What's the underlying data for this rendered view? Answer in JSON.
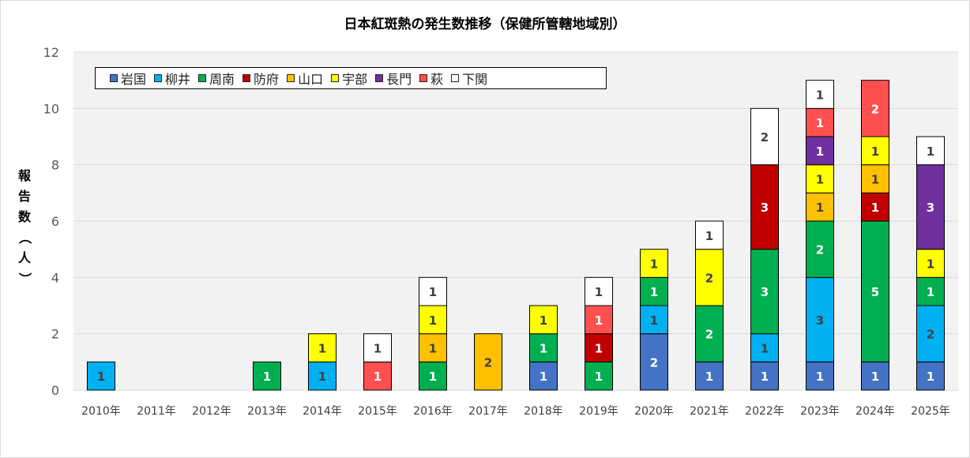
{
  "chart_data": {
    "type": "bar",
    "stacked": true,
    "title": "日本紅斑熱の発生数推移（保健所管轄地域別）",
    "ylabel": "報告数（人）",
    "xlabel": "",
    "ylim": [
      0,
      12
    ],
    "yticks": [
      0,
      2,
      4,
      6,
      8,
      10,
      12
    ],
    "grid": true,
    "legend_position": "top-left",
    "categories": [
      "2010年",
      "2011年",
      "2012年",
      "2013年",
      "2014年",
      "2015年",
      "2016年",
      "2017年",
      "2018年",
      "2019年",
      "2020年",
      "2021年",
      "2022年",
      "2023年",
      "2024年",
      "2025年"
    ],
    "series": [
      {
        "name": "岩国",
        "color": "#4472C4",
        "values": [
          0,
          0,
          0,
          0,
          0,
          0,
          0,
          0,
          1,
          0,
          2,
          1,
          1,
          1,
          1,
          1
        ]
      },
      {
        "name": "柳井",
        "color": "#00B0F0",
        "values": [
          1,
          0,
          0,
          0,
          1,
          0,
          0,
          0,
          0,
          0,
          1,
          0,
          1,
          3,
          0,
          2
        ]
      },
      {
        "name": "周南",
        "color": "#00B050",
        "values": [
          0,
          0,
          0,
          1,
          0,
          0,
          1,
          0,
          1,
          1,
          1,
          2,
          3,
          2,
          5,
          1
        ]
      },
      {
        "name": "防府",
        "color": "#C00000",
        "values": [
          0,
          0,
          0,
          0,
          0,
          0,
          0,
          0,
          0,
          1,
          0,
          0,
          3,
          0,
          1,
          0
        ]
      },
      {
        "name": "山口",
        "color": "#FFC000",
        "values": [
          0,
          0,
          0,
          0,
          0,
          0,
          1,
          2,
          0,
          0,
          0,
          0,
          0,
          1,
          1,
          0
        ]
      },
      {
        "name": "宇部",
        "color": "#FFFF00",
        "values": [
          0,
          0,
          0,
          0,
          1,
          0,
          1,
          0,
          1,
          0,
          1,
          2,
          0,
          1,
          1,
          1
        ]
      },
      {
        "name": "長門",
        "color": "#7030A0",
        "values": [
          0,
          0,
          0,
          0,
          0,
          0,
          0,
          0,
          0,
          0,
          0,
          0,
          0,
          1,
          0,
          3
        ]
      },
      {
        "name": "萩",
        "color": "#FF5050",
        "values": [
          0,
          0,
          0,
          0,
          0,
          1,
          0,
          0,
          0,
          1,
          0,
          0,
          0,
          1,
          2,
          0
        ]
      },
      {
        "name": "下関",
        "color": "#FFFFFF",
        "values": [
          0,
          0,
          0,
          0,
          0,
          1,
          1,
          0,
          0,
          1,
          0,
          1,
          2,
          1,
          0,
          1
        ]
      }
    ]
  }
}
